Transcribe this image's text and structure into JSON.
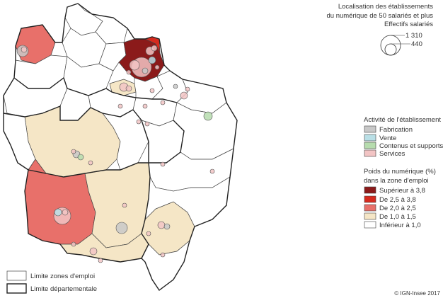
{
  "title": {
    "line1": "Localisation des établissements",
    "line2": "du numérique de 50 salariés et plus",
    "line3": "Effectifs salariés"
  },
  "size_legend": {
    "large": "1 310",
    "small": "440"
  },
  "activity_legend": {
    "title": "Activité de l'établissement",
    "items": [
      {
        "label": "Fabrication",
        "color": "#c8c8c8"
      },
      {
        "label": "Vente",
        "color": "#b9dfe6"
      },
      {
        "label": "Contenus et supports",
        "color": "#b6dcae"
      },
      {
        "label": "Services",
        "color": "#f2c4c4"
      }
    ]
  },
  "weight_legend": {
    "title1": "Poids du numérique (%)",
    "title2": "dans la zone d'emploi",
    "items": [
      {
        "label": "Supérieur à 3,8",
        "color": "#8b1a1a"
      },
      {
        "label": "De 2,5 à 3,8",
        "color": "#d62a1e"
      },
      {
        "label": "De 2,0 à 2,5",
        "color": "#e8706a"
      },
      {
        "label": "De 1,0 à 1,5",
        "color": "#f5e6c6"
      },
      {
        "label": "Inférieur à 1,0",
        "color": "#ffffff"
      }
    ]
  },
  "boundary_legend": {
    "zones_label": "Limite zones d'emploi",
    "dept_label": "Limite départementale"
  },
  "credit": "© IGN-Insee 2017"
}
